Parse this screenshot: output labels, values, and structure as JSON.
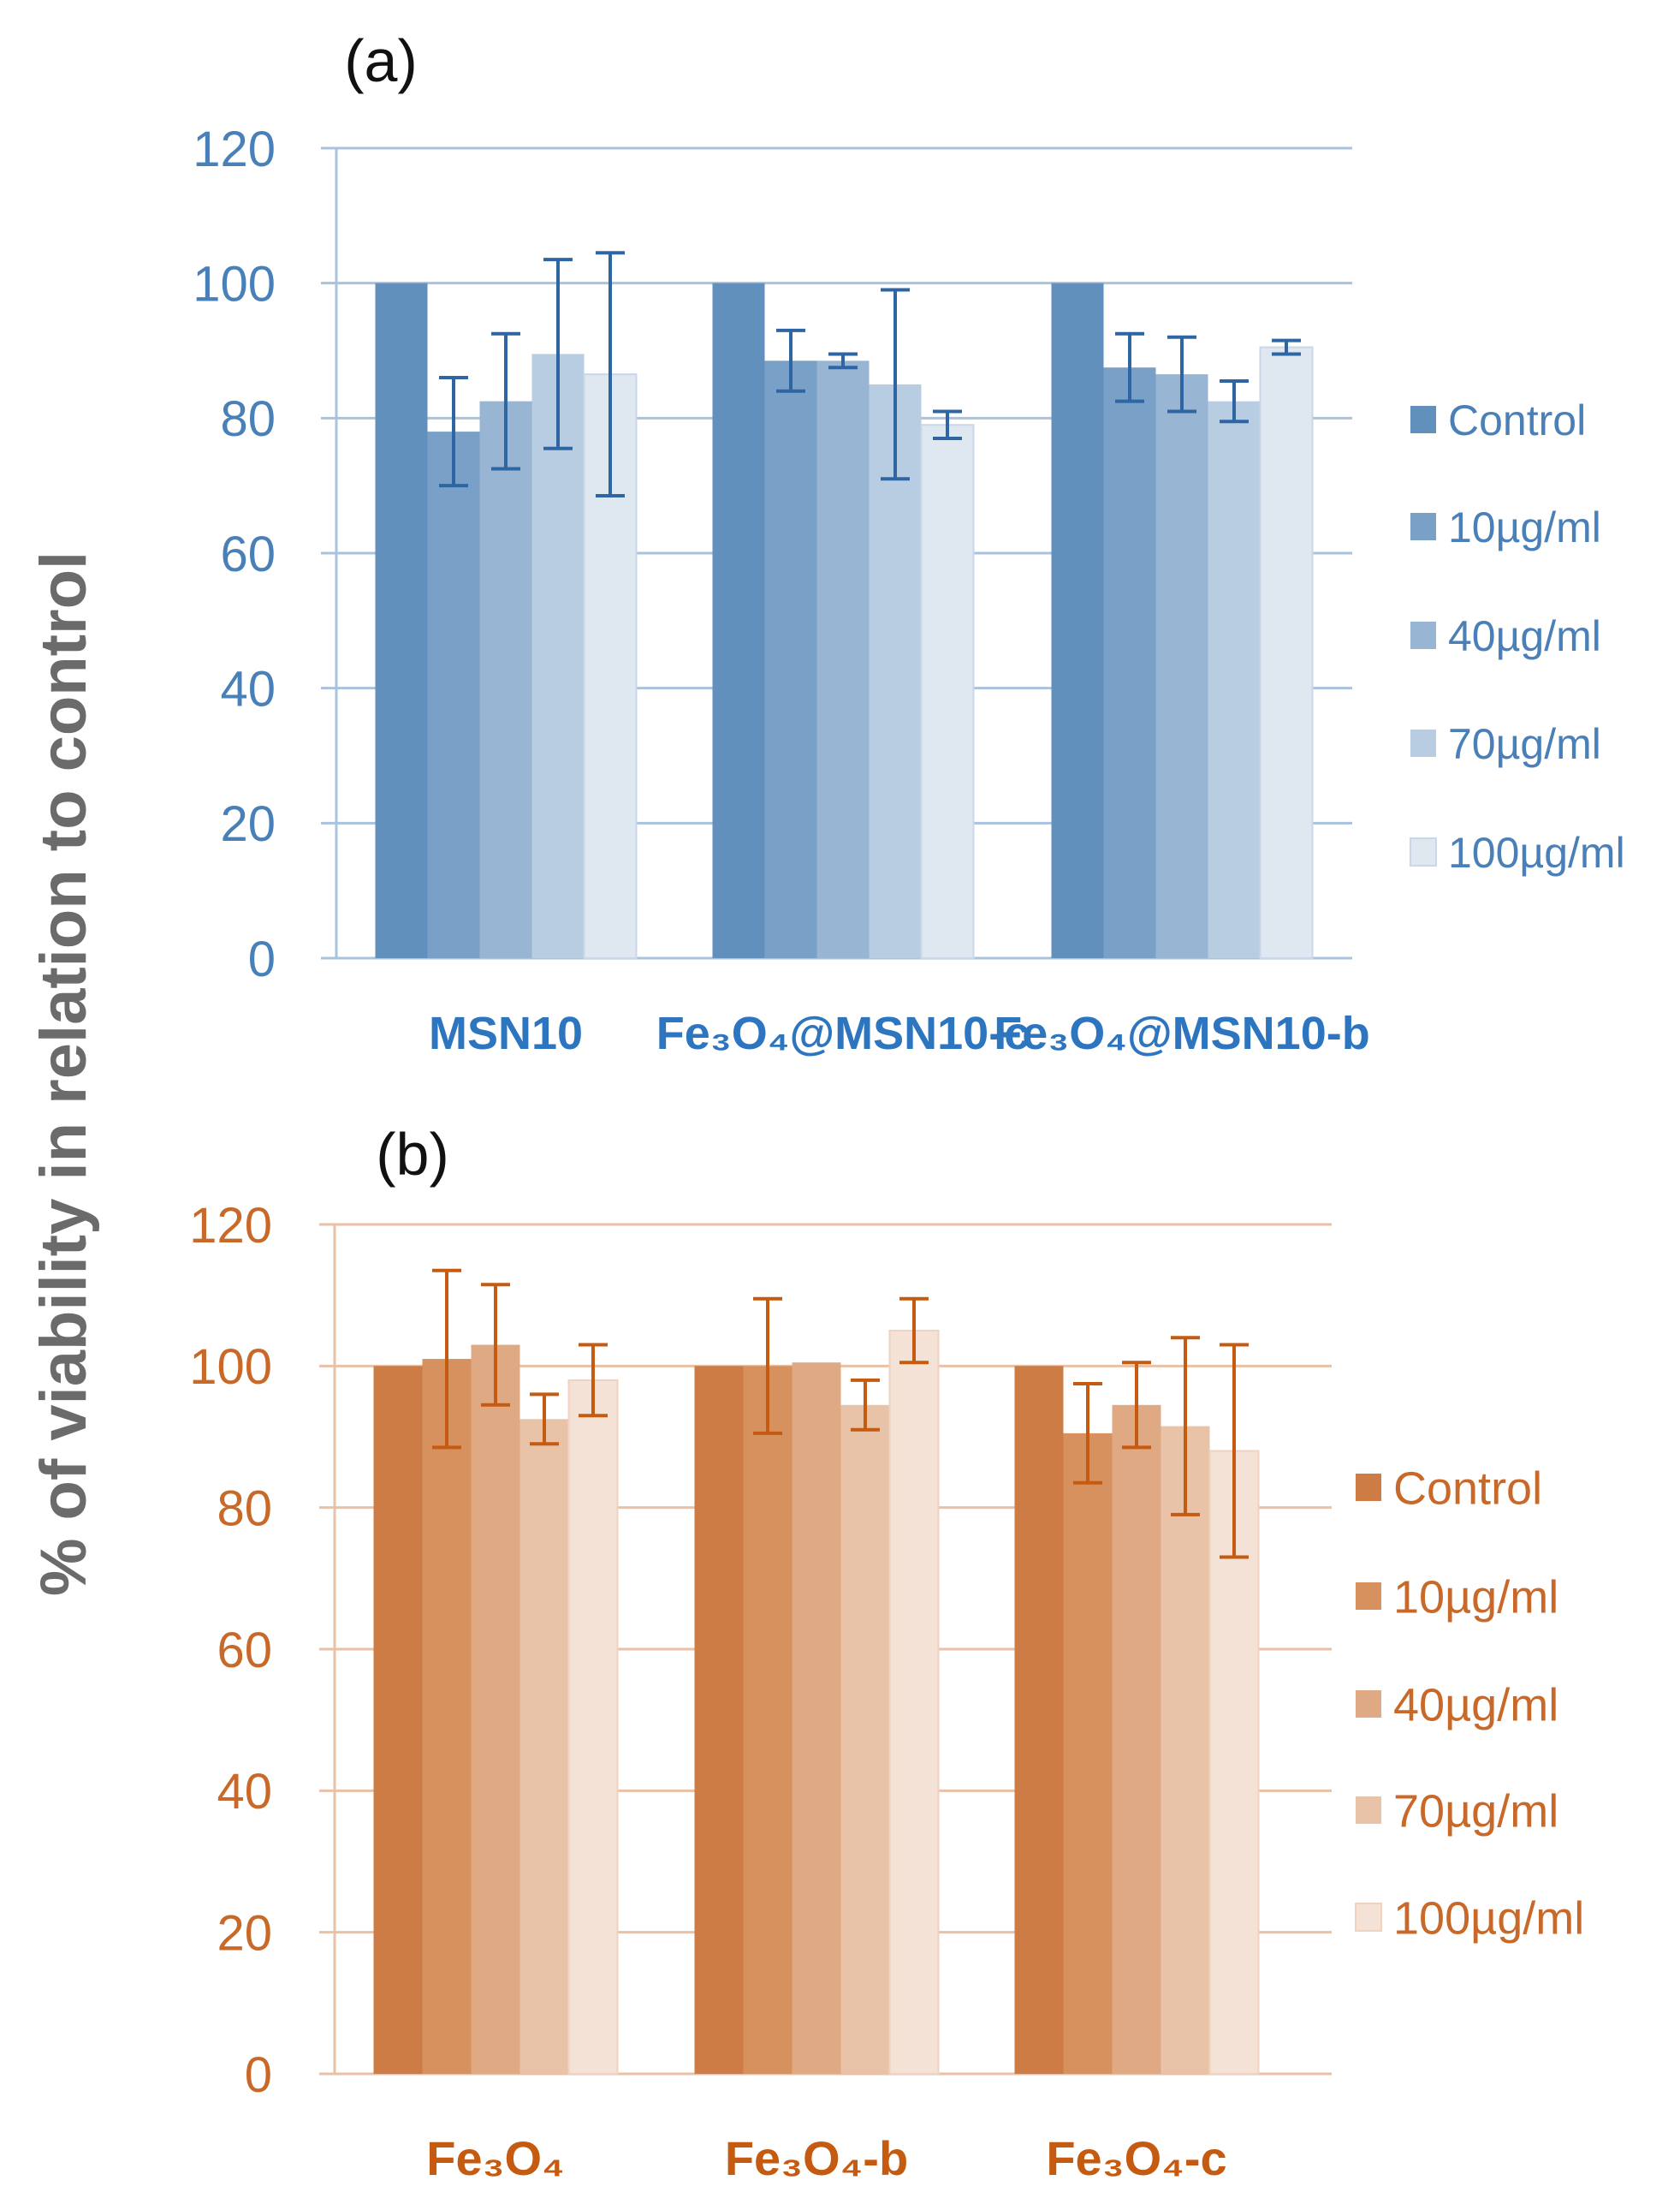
{
  "ylabel": "% of viability in relation to control",
  "chart_data": [
    {
      "type": "bar",
      "title": "(a)",
      "xlabel": "",
      "ylabel": "% of viability in relation to control",
      "ylim": [
        0,
        120
      ],
      "yticks": [
        "0",
        "20",
        "40",
        "60",
        "80",
        "100",
        "120"
      ],
      "grid": true,
      "legend_placement": "right",
      "categories": [
        "MSN10",
        "Fe₃O₄@MSN10-c",
        "Fe₃O₄@MSN10-b"
      ],
      "colors": [
        "#6190bd",
        "#79a0c6",
        "#98b5d3",
        "#b8cce2",
        "#dfe7f1"
      ],
      "tick_color": "#4a80b8",
      "category_color": "#2e75c0",
      "error_color": "#2e66a3",
      "series": [
        {
          "name": "Control",
          "values": [
            100,
            100,
            100
          ],
          "errors": [
            0,
            0,
            0
          ]
        },
        {
          "name": "10µg/ml",
          "values": [
            78,
            88.5,
            87.5
          ],
          "errors": [
            8,
            4.5,
            5
          ]
        },
        {
          "name": "40µg/ml",
          "values": [
            82.5,
            88.5,
            86.5
          ],
          "errors": [
            10,
            1,
            5.5
          ]
        },
        {
          "name": "70µg/ml",
          "values": [
            89.5,
            85,
            82.5
          ],
          "errors": [
            14,
            14,
            3
          ]
        },
        {
          "name": "100µg/ml",
          "values": [
            86.5,
            79,
            90.5
          ],
          "errors": [
            18,
            2,
            1
          ]
        }
      ]
    },
    {
      "type": "bar",
      "title": "(b)",
      "xlabel": "",
      "ylabel": "% of viability in relation to control",
      "ylim": [
        0,
        120
      ],
      "yticks": [
        "0",
        "20",
        "40",
        "60",
        "80",
        "100",
        "120"
      ],
      "grid": true,
      "legend_placement": "right",
      "categories": [
        "Fe₃O₄",
        "Fe₃O₄-b",
        "Fe₃O₄-c"
      ],
      "colors": [
        "#cd7c46",
        "#d6915f",
        "#dfa983",
        "#e8c3a8",
        "#f4e2d6"
      ],
      "tick_color": "#c8692a",
      "category_color": "#c55a11",
      "error_color": "#c55a11",
      "series": [
        {
          "name": "Control",
          "values": [
            100,
            100,
            100
          ],
          "errors": [
            0,
            0,
            0
          ]
        },
        {
          "name": "10µg/ml",
          "values": [
            101,
            100,
            90.5
          ],
          "errors": [
            12.5,
            9.5,
            7
          ]
        },
        {
          "name": "40µg/ml",
          "values": [
            103,
            100.5,
            94.5
          ],
          "errors": [
            8.5,
            0,
            6
          ]
        },
        {
          "name": "70µg/ml",
          "values": [
            92.5,
            94.5,
            91.5
          ],
          "errors": [
            3.5,
            3.5,
            12.5
          ]
        },
        {
          "name": "100µg/ml",
          "values": [
            98,
            105,
            88
          ],
          "errors": [
            5,
            4.5,
            15
          ]
        }
      ]
    }
  ]
}
